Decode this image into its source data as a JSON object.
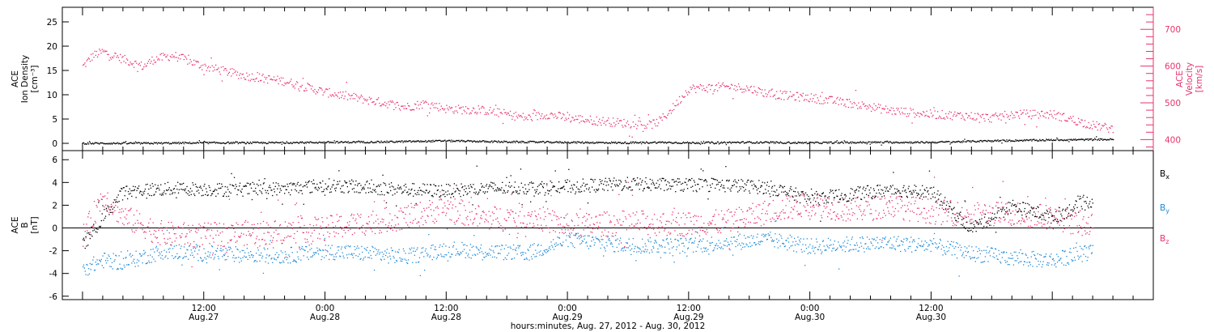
{
  "chart_data": [
    {
      "type": "scatter",
      "panel": "top",
      "left_axis": {
        "label_lines": [
          "ACE",
          "Ion Density",
          "[cm⁻³]"
        ],
        "ylim": [
          -1.5,
          28
        ],
        "ticks": [
          0,
          5,
          10,
          15,
          20,
          25
        ]
      },
      "right_axis": {
        "label_lines": [
          "ACE",
          "Velocity",
          "[km/s]"
        ],
        "ylim": [
          370,
          760
        ],
        "ticks": [
          400,
          500,
          600,
          700
        ],
        "color": "#e8336a"
      },
      "grid": false,
      "series": [
        {
          "color": "#000000",
          "axis": "left",
          "x": [
            0,
            6,
            12,
            18,
            24,
            30,
            36,
            42,
            48,
            54,
            57,
            60,
            66,
            72,
            78,
            84,
            90,
            96,
            102
          ],
          "y": [
            0.1,
            0.1,
            0.2,
            0.2,
            0.3,
            0.4,
            0.6,
            0.4,
            0.3,
            0.2,
            0.3,
            0.2,
            0.3,
            0.2,
            0.3,
            0.3,
            0.6,
            0.8,
            0.9
          ]
        },
        {
          "color": "#e8336a",
          "axis": "right",
          "x": [
            0,
            1,
            2,
            4,
            6,
            7,
            9,
            12,
            16,
            20,
            24,
            28,
            32,
            34,
            36,
            40,
            44,
            46,
            48,
            52,
            56,
            57,
            58,
            60,
            64,
            66,
            68,
            72,
            76,
            78,
            80,
            84,
            88,
            90,
            92,
            96,
            100,
            102
          ],
          "y": [
            600,
            630,
            640,
            620,
            600,
            620,
            630,
            600,
            575,
            560,
            530,
            510,
            490,
            500,
            485,
            480,
            460,
            470,
            460,
            450,
            440,
            450,
            475,
            540,
            545,
            540,
            525,
            515,
            500,
            490,
            480,
            470,
            465,
            460,
            470,
            470,
            440,
            430
          ]
        }
      ]
    },
    {
      "type": "scatter",
      "panel": "bottom",
      "left_axis": {
        "label_lines": [
          "ACE",
          "B",
          "[nT]"
        ],
        "ylim": [
          -6.3,
          6.8
        ],
        "ticks": [
          -6,
          -4,
          -2,
          0,
          2,
          4,
          6
        ]
      },
      "zero_line": true,
      "grid": false,
      "series": [
        {
          "name": "Bx",
          "color": "#000000",
          "x": [
            0,
            2,
            4,
            6,
            10,
            14,
            20,
            24,
            28,
            32,
            36,
            40,
            44,
            48,
            54,
            60,
            64,
            68,
            72,
            76,
            80,
            84,
            88,
            92,
            96,
            100
          ],
          "y": [
            -1.5,
            1.0,
            3.2,
            3.4,
            3.5,
            3.4,
            3.5,
            3.8,
            3.6,
            3.4,
            3.3,
            3.5,
            3.6,
            3.7,
            3.9,
            3.8,
            3.8,
            3.6,
            2.6,
            3.0,
            3.4,
            3.2,
            0.0,
            2.0,
            1.0,
            2.5
          ]
        },
        {
          "name": "By",
          "color": "#1e8ad6",
          "x": [
            0,
            2,
            4,
            8,
            12,
            16,
            20,
            24,
            28,
            32,
            36,
            40,
            44,
            48,
            54,
            60,
            64,
            68,
            72,
            76,
            80,
            84,
            88,
            92,
            96,
            100
          ],
          "y": [
            -3.6,
            -2.8,
            -3.0,
            -2.0,
            -2.2,
            -2.3,
            -2.4,
            -2.0,
            -2.2,
            -2.5,
            -1.8,
            -2.0,
            -2.2,
            -1.0,
            -1.5,
            -1.5,
            -1.2,
            -1.0,
            -1.6,
            -1.4,
            -1.3,
            -1.5,
            -2.2,
            -2.6,
            -2.8,
            -2.0
          ]
        },
        {
          "name": "Bz",
          "color": "#e8336a",
          "x": [
            0,
            2,
            4,
            8,
            12,
            16,
            20,
            24,
            28,
            32,
            36,
            40,
            44,
            48,
            54,
            60,
            64,
            68,
            72,
            76,
            80,
            84,
            88,
            92,
            96,
            100
          ],
          "y": [
            -0.8,
            3.0,
            1.0,
            -0.5,
            -0.6,
            -0.4,
            -0.3,
            0.0,
            0.5,
            1.0,
            1.8,
            0.8,
            1.2,
            0.2,
            0.5,
            0.4,
            0.6,
            1.5,
            2.2,
            1.6,
            2.0,
            1.5,
            1.2,
            1.3,
            1.0,
            0.2
          ]
        }
      ]
    }
  ],
  "x_axis": {
    "range_hours": [
      -2,
      106
    ],
    "major_ticks": [
      {
        "hours": 12,
        "time": "12:00",
        "date": "Aug.27"
      },
      {
        "hours": 24,
        "time": "0:00",
        "date": "Aug.28"
      },
      {
        "hours": 36,
        "time": "12:00",
        "date": "Aug.28"
      },
      {
        "hours": 48,
        "time": "0:00",
        "date": "Aug.29"
      },
      {
        "hours": 60,
        "time": "12:00",
        "date": "Aug.29"
      },
      {
        "hours": 72,
        "time": "0:00",
        "date": "Aug.30"
      },
      {
        "hours": 84,
        "time": "12:00",
        "date": "Aug.30"
      }
    ],
    "label": "hours:minutes, Aug. 27, 2012 - Aug. 30, 2012"
  },
  "legend": [
    {
      "text": "B",
      "sub": "x",
      "color": "#000000"
    },
    {
      "text": "B",
      "sub": "y",
      "color": "#1e8ad6"
    },
    {
      "text": "B",
      "sub": "z",
      "color": "#e8336a"
    }
  ]
}
